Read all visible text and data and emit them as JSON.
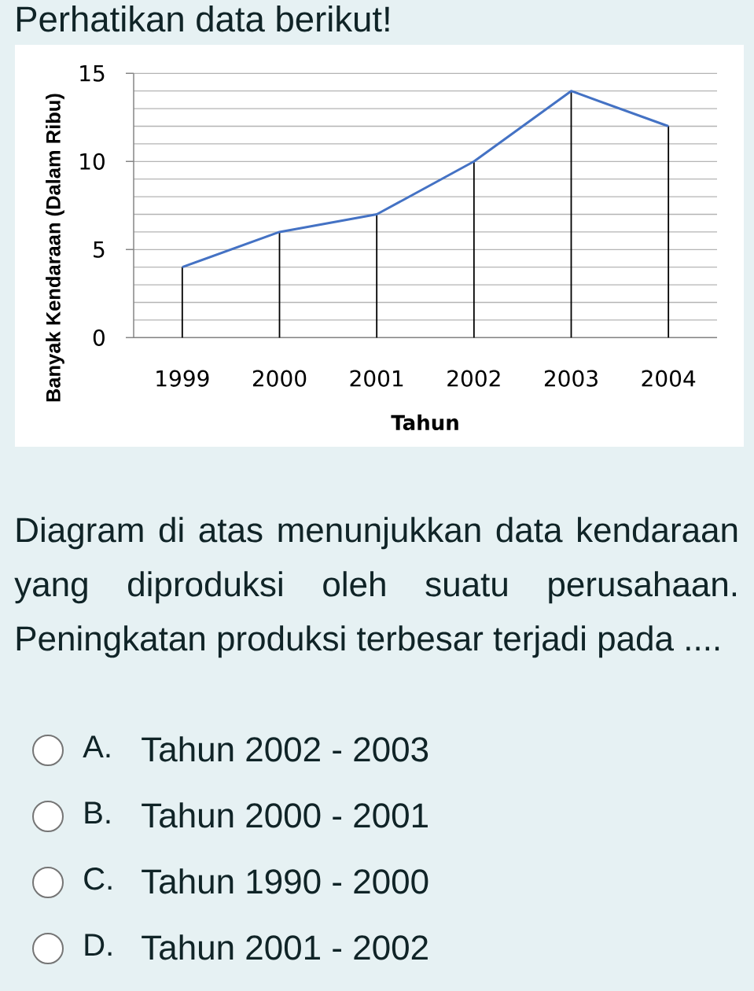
{
  "chart_data": {
    "type": "line",
    "title": "Perhatikan data berikut!",
    "xlabel": "Tahun",
    "ylabel": "Banyak Kendaraan (Dalam Ribu)",
    "categories": [
      "1999",
      "2000",
      "2001",
      "2002",
      "2003",
      "2004"
    ],
    "series": [
      {
        "type": "bar",
        "color": "#000000",
        "values": [
          4,
          6,
          7,
          10,
          14,
          12
        ]
      },
      {
        "color": "#4472c4",
        "values": [
          4,
          6,
          7,
          10,
          14,
          12
        ]
      }
    ],
    "ylim": [
      0,
      15
    ],
    "yticks": [
      0,
      {
        "value": 1,
        "label": null
      },
      {
        "value": 2,
        "label": null
      },
      {
        "value": 3,
        "label": null
      },
      {
        "value": 4,
        "label": null
      },
      5,
      {
        "value": 6,
        "label": null
      },
      {
        "value": 7,
        "label": null
      },
      {
        "value": 8,
        "label": null
      },
      {
        "value": 9,
        "label": null
      },
      10,
      {
        "value": 11,
        "label": null
      },
      {
        "value": 12,
        "label": null
      },
      {
        "value": 13,
        "label": null
      },
      {
        "value": 14,
        "label": null
      },
      15
    ],
    "grid": "y",
    "annotations": [
      "Diagram di atas menunjukkan data kendaraan yang diproduksi oleh suatu perusahaan. Peningkatan produksi terbesar terjadi pada ....",
      "A.",
      "Tahun 2002 - 2003",
      "B.",
      "Tahun 2000 - 2001",
      "C.",
      "Tahun 1990 - 2000",
      "D.",
      "Tahun 2001 - 2002"
    ]
  }
}
